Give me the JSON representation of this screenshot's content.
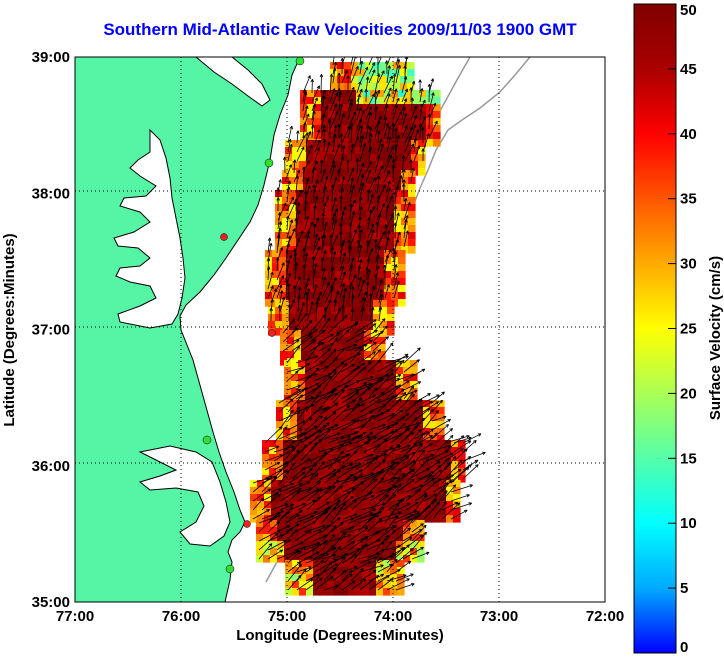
{
  "title": "Southern Mid-Atlantic Raw Velocities 2009/11/03 1900 GMT",
  "x_axis": {
    "label": "Longitude (Degrees:Minutes)",
    "ticks": [
      "77:00",
      "76:00",
      "75:00",
      "74:00",
      "73:00",
      "72:00"
    ]
  },
  "y_axis": {
    "label": "Latitude (Degrees:Minutes)",
    "ticks": [
      "39:00",
      "38:00",
      "37:00",
      "36:00",
      "35:00"
    ]
  },
  "colorbar": {
    "label": "Surface Velocity (cm/s)",
    "ticks": [
      "50",
      "45",
      "40",
      "35",
      "30",
      "25",
      "20",
      "15",
      "10",
      "5",
      "0"
    ],
    "range": [
      0,
      50
    ],
    "colors": [
      "#0000ff",
      "#00aaff",
      "#00ffff",
      "#55ffaa",
      "#aaff55",
      "#ffff00",
      "#ffaa00",
      "#ff5500",
      "#ff0000",
      "#aa0000",
      "#800000"
    ]
  },
  "colors": {
    "land": "#55f5a5",
    "coast": "#000000",
    "bathymetry": "#999999",
    "arrows": "#000000",
    "site_green": "#33dd33",
    "site_red": "#ee2222"
  }
}
